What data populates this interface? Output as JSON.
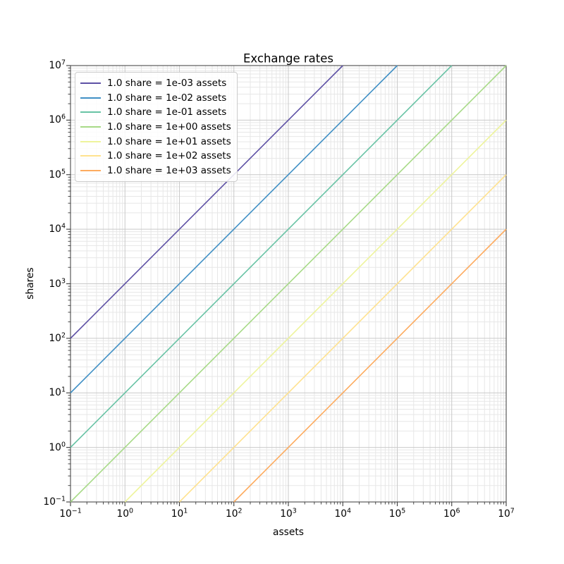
{
  "figure": {
    "title": "Exchange rates",
    "background_color": "#ffffff"
  },
  "chart_data": {
    "type": "line",
    "title": "Exchange rates",
    "xlabel": "assets",
    "ylabel": "shares",
    "x_scale": "log",
    "y_scale": "log",
    "xlim": [
      0.1,
      10000000
    ],
    "ylim": [
      0.1,
      10000000
    ],
    "tick_base": 10,
    "x_tick_exponents": [
      -1,
      0,
      1,
      2,
      3,
      4,
      5,
      6,
      7
    ],
    "y_tick_exponents": [
      -1,
      0,
      1,
      2,
      3,
      4,
      5,
      6,
      7
    ],
    "grid": "both major and log-minor gridlines, x and y",
    "legend_position": "upper left",
    "series": [
      {
        "label": "1.0 share = 1e-03 assets",
        "assets_per_share": 0.001,
        "relation": "shares = assets / 1e-03",
        "color": "#5e51a5",
        "endpoints": {
          "x": [
            0.1,
            10000
          ],
          "y": [
            100,
            10000000
          ]
        }
      },
      {
        "label": "1.0 share = 1e-02 assets",
        "assets_per_share": 0.01,
        "relation": "shares = assets / 1e-02",
        "color": "#4090c5",
        "endpoints": {
          "x": [
            0.1,
            100000
          ],
          "y": [
            10,
            10000000
          ]
        }
      },
      {
        "label": "1.0 share = 1e-01 assets",
        "assets_per_share": 0.1,
        "relation": "shares = assets / 1e-01",
        "color": "#68c3a5",
        "endpoints": {
          "x": [
            0.1,
            1000000
          ],
          "y": [
            1,
            10000000
          ]
        }
      },
      {
        "label": "1.0 share = 1e+00 assets",
        "assets_per_share": 1,
        "relation": "shares = assets / 1e+00",
        "color": "#a7da87",
        "endpoints": {
          "x": [
            0.1,
            10000000
          ],
          "y": [
            0.1,
            10000000
          ]
        }
      },
      {
        "label": "1.0 share = 1e+01 assets",
        "assets_per_share": 10,
        "relation": "shares = assets / 1e+01",
        "color": "#eef49c",
        "endpoints": {
          "x": [
            1,
            10000000
          ],
          "y": [
            0.1,
            1000000
          ]
        }
      },
      {
        "label": "1.0 share = 1e+02 assets",
        "assets_per_share": 100,
        "relation": "shares = assets / 1e+02",
        "color": "#ffe28f",
        "endpoints": {
          "x": [
            10,
            10000000
          ],
          "y": [
            0.1,
            100000
          ]
        }
      },
      {
        "label": "1.0 share = 1e+03 assets",
        "assets_per_share": 1000,
        "relation": "shares = assets / 1e+03",
        "color": "#fdab5f",
        "endpoints": {
          "x": [
            100,
            10000000
          ],
          "y": [
            0.1,
            10000
          ]
        }
      }
    ]
  },
  "style": {
    "major_grid_color": "#c9c9c9",
    "minor_grid_color": "#e7e7e7",
    "spine_color": "#3a3a3a",
    "tick_color": "#3a3a3a",
    "text_color": "#000000",
    "legend_border_color": "#cccccc",
    "legend_background": "rgba(255,255,255,0.85)",
    "series_line_width": 1.6
  }
}
